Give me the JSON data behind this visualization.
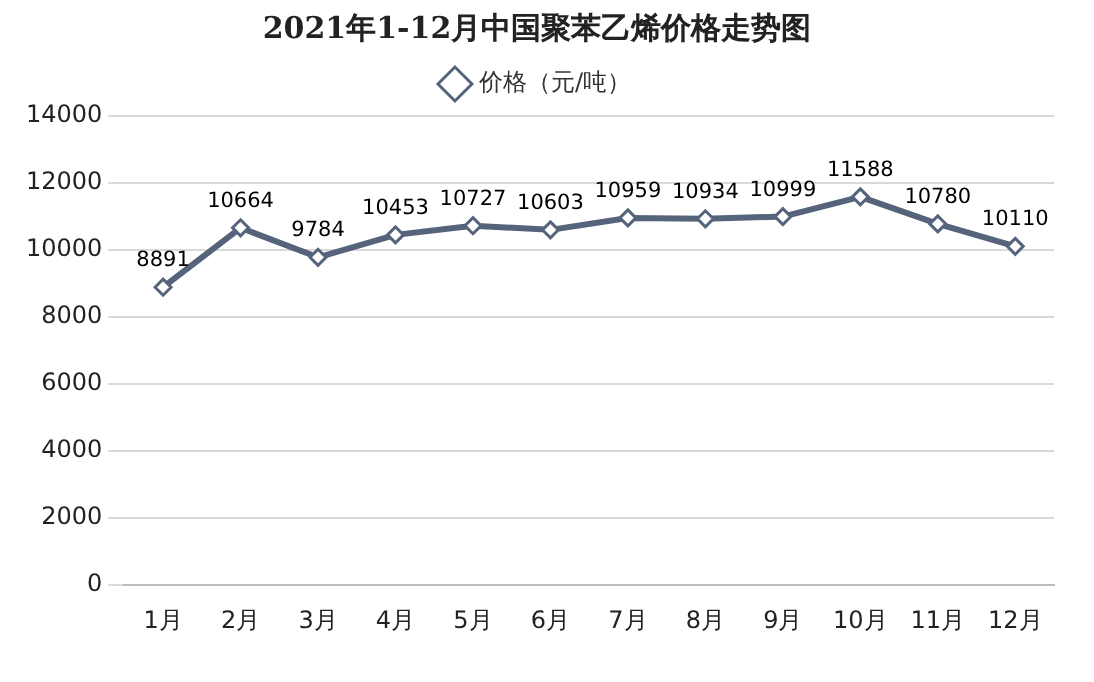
{
  "chart_data": {
    "type": "line",
    "title": "2021年1-12月中国聚苯乙烯价格走势图",
    "categories": [
      "1月",
      "2月",
      "3月",
      "4月",
      "5月",
      "6月",
      "7月",
      "8月",
      "9月",
      "10月",
      "11月",
      "12月"
    ],
    "series": [
      {
        "name": "价格（元/吨）",
        "color": "#56647b",
        "values": [
          8891,
          10664,
          9784,
          10453,
          10727,
          10603,
          10959,
          10934,
          10999,
          11588,
          10780,
          10110
        ]
      }
    ],
    "ylim": [
      0,
      14000
    ],
    "yticks": [
      0,
      2000,
      4000,
      6000,
      8000,
      10000,
      12000,
      14000
    ],
    "grid": "y",
    "legend": "top",
    "marker": "diamond",
    "line_style": "solid",
    "data_labels": true
  }
}
